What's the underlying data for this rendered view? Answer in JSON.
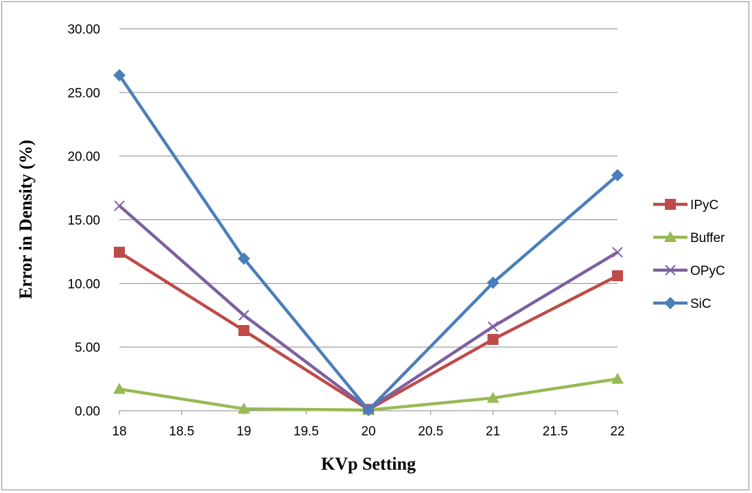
{
  "chart_data": {
    "type": "line",
    "xlabel": "KVp Setting",
    "ylabel": "Error in Density (%)",
    "xlim": [
      18,
      22
    ],
    "ylim": [
      0,
      30
    ],
    "x_ticks": [
      "18",
      "18.5",
      "19",
      "19.5",
      "20",
      "20.5",
      "21",
      "21.5",
      "22"
    ],
    "y_ticks": [
      "0.00",
      "5.00",
      "10.00",
      "15.00",
      "20.00",
      "25.00",
      "30.00"
    ],
    "grid": "horizontal",
    "legend_position": "right",
    "x": [
      18,
      19,
      20,
      21,
      22
    ],
    "series": [
      {
        "name": "IPyC",
        "color": "#be4b48",
        "marker": "square",
        "values": [
          12.45,
          6.3,
          0.1,
          5.6,
          10.6
        ]
      },
      {
        "name": "Buffer",
        "color": "#98b954",
        "marker": "triangle",
        "values": [
          1.7,
          0.15,
          0.05,
          1.0,
          2.5
        ]
      },
      {
        "name": "OPyC",
        "color": "#7d60a0",
        "marker": "x",
        "values": [
          16.1,
          7.5,
          0.15,
          6.6,
          12.45
        ]
      },
      {
        "name": "SiC",
        "color": "#4a7ebb",
        "marker": "diamond",
        "values": [
          26.35,
          11.95,
          0.05,
          10.05,
          18.5
        ]
      }
    ]
  }
}
